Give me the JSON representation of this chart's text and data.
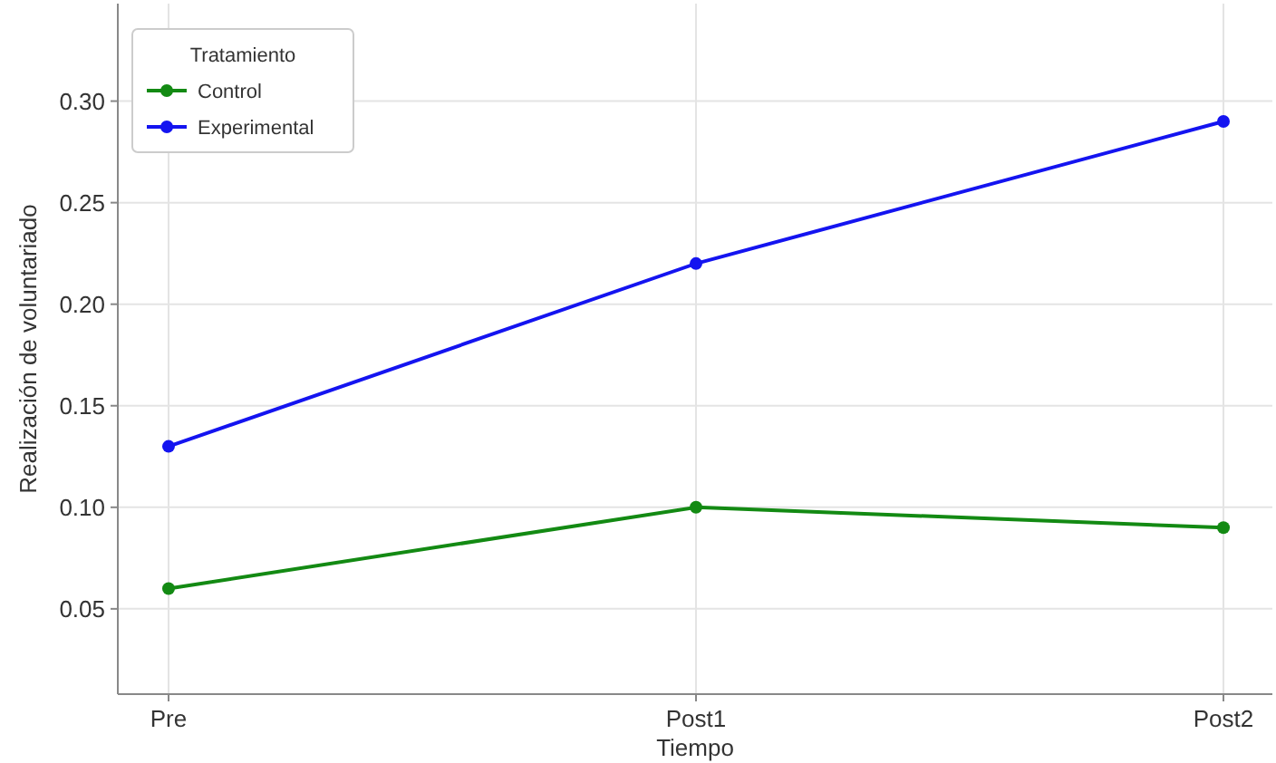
{
  "chart_data": {
    "type": "line",
    "xlabel": "Tiempo",
    "ylabel": "Realización de voluntariado",
    "legend_title": "Tratamiento",
    "categories": [
      "Pre",
      "Post1",
      "Post2"
    ],
    "series": [
      {
        "name": "Control",
        "color": "#138a13",
        "values": [
          0.06,
          0.1,
          0.09
        ]
      },
      {
        "name": "Experimental",
        "color": "#1414f0",
        "values": [
          0.13,
          0.22,
          0.29
        ]
      }
    ],
    "ylim": [
      0.008,
      0.348
    ],
    "yticks": [
      {
        "value": 0.05,
        "label": "0.05"
      },
      {
        "value": 0.1,
        "label": "0.10"
      },
      {
        "value": 0.15,
        "label": "0.15"
      },
      {
        "value": 0.2,
        "label": "0.20"
      },
      {
        "value": 0.25,
        "label": "0.25"
      },
      {
        "value": 0.3,
        "label": "0.30"
      }
    ],
    "grid": true,
    "legend": "top left",
    "marker": "circle",
    "line_style": "solid"
  }
}
